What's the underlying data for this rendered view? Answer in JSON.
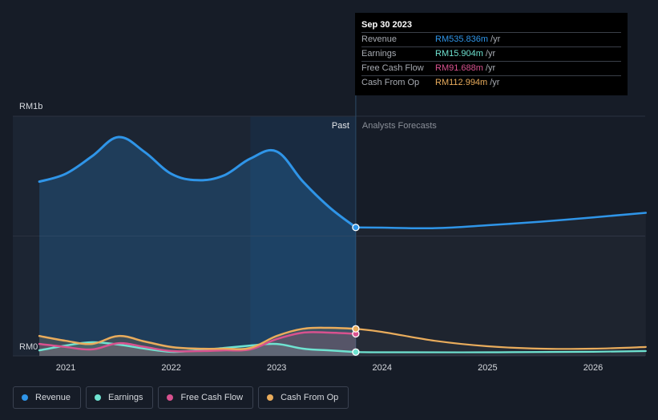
{
  "colors": {
    "background": "#161c27",
    "revenue": "#2f95e8",
    "earnings": "#6fe3d1",
    "free_cash_flow": "#d8528f",
    "cash_from_op": "#e9ac5c",
    "grid": "#2b3240",
    "past_region": "#1c2533",
    "highlight_region": "#17324d"
  },
  "tooltip": {
    "date": "Sep 30 2023",
    "rows": [
      {
        "label": "Revenue",
        "value": "RM535.836m",
        "unit": "/yr",
        "color": "#2f95e8"
      },
      {
        "label": "Earnings",
        "value": "RM15.904m",
        "unit": "/yr",
        "color": "#6fe3d1"
      },
      {
        "label": "Free Cash Flow",
        "value": "RM91.688m",
        "unit": "/yr",
        "color": "#d8528f"
      },
      {
        "label": "Cash From Op",
        "value": "RM112.994m",
        "unit": "/yr",
        "color": "#e9ac5c"
      }
    ]
  },
  "legend": [
    {
      "label": "Revenue",
      "color": "#2f95e8",
      "icon": "revenue-dot-icon"
    },
    {
      "label": "Earnings",
      "color": "#6fe3d1",
      "icon": "earnings-dot-icon"
    },
    {
      "label": "Free Cash Flow",
      "color": "#d8528f",
      "icon": "free-cash-flow-dot-icon"
    },
    {
      "label": "Cash From Op",
      "color": "#e9ac5c",
      "icon": "cash-from-op-dot-icon"
    }
  ],
  "chart_data": {
    "type": "line",
    "y_top_label": "RM1b",
    "y_bottom_label": "RM0",
    "ylim": [
      0,
      1000
    ],
    "xlim": [
      2020.75,
      2026.5
    ],
    "x_ticks": [
      {
        "value": 2021,
        "label": "2021"
      },
      {
        "value": 2022,
        "label": "2022"
      },
      {
        "value": 2023,
        "label": "2023"
      },
      {
        "value": 2024,
        "label": "2024"
      },
      {
        "value": 2025,
        "label": "2025"
      },
      {
        "value": 2026,
        "label": "2026"
      }
    ],
    "past_label": "Past",
    "forecast_label": "Analysts Forecasts",
    "divider_x": 2023.75,
    "highlight_start_x": 2022.75,
    "grid": true,
    "series": [
      {
        "name": "Revenue",
        "key": "revenue",
        "past": [
          [
            2020.75,
            727
          ],
          [
            2021.0,
            760
          ],
          [
            2021.25,
            833
          ],
          [
            2021.5,
            913
          ],
          [
            2021.75,
            850
          ],
          [
            2022.0,
            760
          ],
          [
            2022.25,
            733
          ],
          [
            2022.5,
            753
          ],
          [
            2022.75,
            823
          ],
          [
            2023.0,
            853
          ],
          [
            2023.25,
            727
          ],
          [
            2023.5,
            620
          ],
          [
            2023.75,
            536
          ]
        ],
        "forecast": [
          [
            2023.75,
            536
          ],
          [
            2024.0,
            535
          ],
          [
            2024.5,
            533
          ],
          [
            2025.0,
            545
          ],
          [
            2025.5,
            560
          ],
          [
            2026.0,
            578
          ],
          [
            2026.5,
            597
          ]
        ]
      },
      {
        "name": "Earnings",
        "key": "earnings",
        "past": [
          [
            2020.75,
            23
          ],
          [
            2021.0,
            43
          ],
          [
            2021.25,
            57
          ],
          [
            2021.5,
            47
          ],
          [
            2021.75,
            30
          ],
          [
            2022.0,
            17
          ],
          [
            2022.25,
            23
          ],
          [
            2022.5,
            33
          ],
          [
            2022.75,
            43
          ],
          [
            2023.0,
            50
          ],
          [
            2023.25,
            30
          ],
          [
            2023.5,
            23
          ],
          [
            2023.75,
            16
          ]
        ],
        "forecast": [
          [
            2023.75,
            16
          ],
          [
            2024.0,
            15
          ],
          [
            2025.0,
            15
          ],
          [
            2026.0,
            17
          ],
          [
            2026.5,
            20
          ]
        ]
      },
      {
        "name": "Free Cash Flow",
        "key": "free_cash_flow",
        "past": [
          [
            2020.75,
            50
          ],
          [
            2021.0,
            37
          ],
          [
            2021.25,
            27
          ],
          [
            2021.5,
            53
          ],
          [
            2021.75,
            37
          ],
          [
            2022.0,
            20
          ],
          [
            2022.25,
            20
          ],
          [
            2022.5,
            23
          ],
          [
            2022.75,
            27
          ],
          [
            2023.0,
            70
          ],
          [
            2023.25,
            97
          ],
          [
            2023.5,
            97
          ],
          [
            2023.75,
            92
          ]
        ],
        "forecast": []
      },
      {
        "name": "Cash From Op",
        "key": "cash_from_op",
        "past": [
          [
            2020.75,
            83
          ],
          [
            2021.0,
            63
          ],
          [
            2021.25,
            50
          ],
          [
            2021.5,
            83
          ],
          [
            2021.75,
            60
          ],
          [
            2022.0,
            37
          ],
          [
            2022.25,
            30
          ],
          [
            2022.5,
            30
          ],
          [
            2022.75,
            33
          ],
          [
            2023.0,
            83
          ],
          [
            2023.25,
            113
          ],
          [
            2023.5,
            117
          ],
          [
            2023.75,
            113
          ]
        ],
        "forecast": [
          [
            2023.75,
            113
          ],
          [
            2024.0,
            100
          ],
          [
            2024.5,
            63
          ],
          [
            2025.0,
            40
          ],
          [
            2025.5,
            30
          ],
          [
            2026.0,
            30
          ],
          [
            2026.5,
            37
          ]
        ]
      }
    ]
  }
}
